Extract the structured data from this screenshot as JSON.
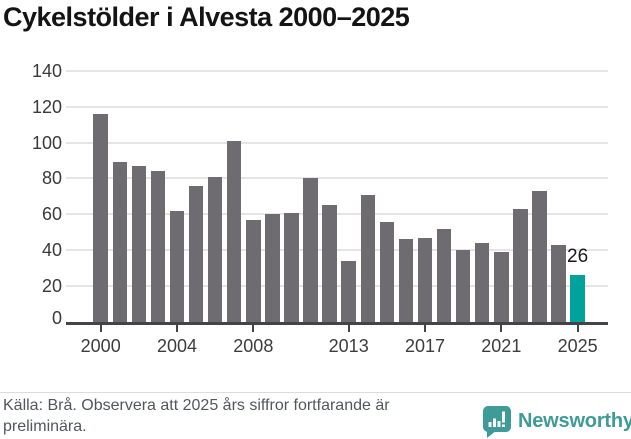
{
  "title": "Cykelstölder i Alvesta 2000–2025",
  "chart_data": {
    "type": "bar",
    "title": "Cykelstölder i Alvesta 2000–2025",
    "categories": [
      2000,
      2001,
      2002,
      2003,
      2004,
      2005,
      2006,
      2007,
      2008,
      2009,
      2010,
      2011,
      2012,
      2013,
      2014,
      2015,
      2016,
      2017,
      2018,
      2019,
      2020,
      2021,
      2022,
      2023,
      2024,
      2025
    ],
    "values": [
      116,
      89,
      87,
      84,
      62,
      76,
      81,
      101,
      57,
      60,
      61,
      80,
      65,
      34,
      71,
      56,
      46,
      47,
      52,
      40,
      44,
      39,
      63,
      73,
      43,
      26
    ],
    "ylim": [
      0,
      140
    ],
    "yticks": [
      0,
      20,
      40,
      60,
      80,
      100,
      120,
      140
    ],
    "xtick_labels": [
      "2000",
      "2004",
      "2008",
      "2013",
      "2017",
      "2021",
      "2025"
    ],
    "grid": true,
    "legend": "none",
    "bar_color": "#6f6c71",
    "highlight": {
      "category": 2025,
      "value": 26,
      "color": "#00a29c",
      "label": "26"
    },
    "annotations": [
      {
        "text": "26",
        "category": 2025
      }
    ]
  },
  "footer": {
    "source_note": "Källa: Brå. Observera att 2025 års siffror fortfarande är preliminära.",
    "brand": "Newsworthy"
  },
  "colors": {
    "bar": "#6f6c71",
    "highlight": "#00a29c",
    "grid": "#e5e5e5",
    "axis": "#434349",
    "axis_text": "#3a3a3a",
    "title_text": "#141414",
    "footer_text": "#50585d",
    "brand_teal": "#3e9b97"
  }
}
